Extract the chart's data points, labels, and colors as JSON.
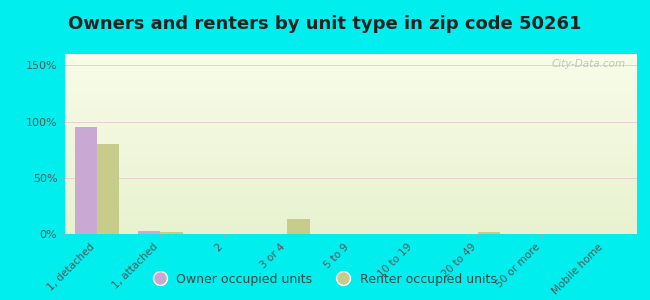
{
  "title": "Owners and renters by unit type in zip code 50261",
  "categories": [
    "1, detached",
    "1, attached",
    "2",
    "3 or 4",
    "5 to 9",
    "10 to 19",
    "20 to 49",
    "50 or more",
    "Mobile home"
  ],
  "owner_values": [
    95,
    3,
    0,
    0,
    0,
    0,
    0,
    0,
    0
  ],
  "renter_values": [
    80,
    2,
    0,
    13,
    0,
    0,
    2,
    0,
    0
  ],
  "owner_color": "#c9a8d4",
  "renter_color": "#c8cc8a",
  "background_color": "#00eeee",
  "yticks": [
    0,
    50,
    100,
    150
  ],
  "ylim": [
    0,
    160
  ],
  "watermark": "City-Data.com",
  "legend_owner": "Owner occupied units",
  "legend_renter": "Renter occupied units",
  "title_fontsize": 13,
  "bar_width": 0.35
}
